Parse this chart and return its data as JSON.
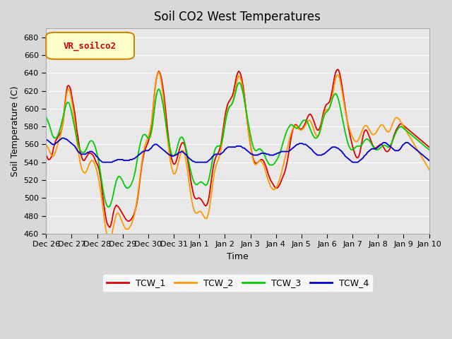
{
  "title": "Soil CO2 West Temperatures",
  "xlabel": "Time",
  "ylabel": "Soil Temperature (C)",
  "ylim": [
    460,
    690
  ],
  "yticks": [
    460,
    480,
    500,
    520,
    540,
    560,
    580,
    600,
    620,
    640,
    660,
    680
  ],
  "bg_color": "#e8e8e8",
  "plot_bg": "#f0f0f0",
  "annotation_label": "VR_soilco2",
  "annotation_bg": "#ffffcc",
  "annotation_edge": "#cc8800",
  "annotation_text_color": "#cc0000",
  "series_colors": [
    "#dd0000",
    "#ff9900",
    "#00cc00",
    "#0000cc"
  ],
  "series_names": [
    "TCW_1",
    "TCW_2",
    "TCW_3",
    "TCW_4"
  ],
  "x_tick_labels": [
    "Dec 26",
    "Dec 27",
    "Dec 28",
    "Dec 29",
    "Dec 30",
    "Dec 31",
    "Jan 1",
    "Jan 2",
    "Jan 3",
    "Jan 4",
    "Jan 5",
    "Jan 6",
    "Jan 7",
    "Jan 8",
    "Jan 9",
    "Jan 10"
  ],
  "n_points": 361,
  "tcw1": [
    548,
    546,
    543,
    543,
    544,
    546,
    550,
    556,
    560,
    564,
    566,
    568,
    570,
    572,
    574,
    578,
    585,
    595,
    608,
    618,
    625,
    626,
    625,
    622,
    615,
    608,
    602,
    595,
    585,
    575,
    568,
    560,
    552,
    548,
    544,
    542,
    542,
    544,
    546,
    548,
    550,
    550,
    550,
    549,
    548,
    546,
    543,
    540,
    538,
    535,
    531,
    524,
    516,
    504,
    495,
    487,
    479,
    473,
    470,
    468,
    467,
    470,
    475,
    482,
    487,
    490,
    492,
    491,
    490,
    488,
    486,
    484,
    482,
    480,
    478,
    476,
    475,
    474,
    474,
    475,
    476,
    478,
    480,
    483,
    487,
    492,
    499,
    508,
    518,
    528,
    537,
    544,
    550,
    554,
    557,
    560,
    563,
    567,
    572,
    580,
    592,
    605,
    618,
    628,
    636,
    640,
    642,
    640,
    636,
    630,
    622,
    613,
    602,
    590,
    578,
    568,
    558,
    550,
    544,
    540,
    538,
    538,
    540,
    544,
    548,
    553,
    557,
    560,
    562,
    562,
    560,
    556,
    550,
    543,
    536,
    528,
    520,
    513,
    507,
    502,
    500,
    499,
    499,
    500,
    500,
    499,
    498,
    496,
    494,
    492,
    491,
    492,
    495,
    500,
    508,
    517,
    526,
    534,
    540,
    544,
    547,
    549,
    551,
    554,
    558,
    565,
    573,
    582,
    590,
    597,
    602,
    606,
    608,
    610,
    612,
    614,
    618,
    624,
    630,
    636,
    640,
    642,
    641,
    638,
    633,
    626,
    618,
    608,
    598,
    587,
    577,
    568,
    560,
    553,
    547,
    543,
    540,
    539,
    539,
    540,
    541,
    542,
    543,
    543,
    542,
    540,
    537,
    534,
    530,
    526,
    523,
    520,
    518,
    516,
    514,
    512,
    511,
    511,
    512,
    514,
    516,
    519,
    522,
    525,
    528,
    532,
    537,
    543,
    550,
    558,
    566,
    572,
    577,
    580,
    582,
    582,
    581,
    579,
    578,
    577,
    577,
    578,
    580,
    582,
    585,
    588,
    591,
    593,
    594,
    593,
    591,
    588,
    585,
    581,
    578,
    576,
    576,
    578,
    581,
    586,
    592,
    597,
    601,
    604,
    605,
    606,
    607,
    610,
    615,
    621,
    628,
    635,
    640,
    643,
    644,
    643,
    639,
    633,
    626,
    618,
    610,
    602,
    594,
    587,
    580,
    574,
    568,
    563,
    558,
    554,
    550,
    547,
    545,
    545,
    547,
    551,
    557,
    564,
    570,
    574,
    576,
    576,
    574,
    571,
    568,
    565,
    562,
    559,
    557,
    556,
    556,
    557,
    558,
    559,
    560,
    560,
    559,
    557,
    555,
    553,
    552,
    552,
    553,
    555,
    558,
    562,
    566,
    570,
    573,
    576,
    578,
    580,
    582,
    583,
    583,
    582,
    581,
    580,
    579,
    578,
    577,
    576,
    575,
    574,
    573,
    572,
    571,
    570,
    569,
    568,
    567,
    566,
    565,
    564,
    563,
    562,
    561,
    560,
    559,
    558,
    557
  ],
  "tcw2": [
    560,
    558,
    556,
    553,
    550,
    548,
    546,
    547,
    549,
    552,
    556,
    560,
    564,
    568,
    572,
    578,
    585,
    594,
    604,
    614,
    620,
    622,
    620,
    616,
    609,
    602,
    594,
    585,
    574,
    563,
    554,
    547,
    540,
    535,
    531,
    529,
    528,
    528,
    530,
    533,
    536,
    539,
    541,
    542,
    542,
    540,
    537,
    533,
    529,
    523,
    517,
    510,
    502,
    493,
    483,
    474,
    466,
    460,
    456,
    454,
    454,
    456,
    460,
    466,
    472,
    477,
    481,
    483,
    483,
    481,
    478,
    475,
    472,
    469,
    467,
    465,
    465,
    465,
    466,
    468,
    470,
    473,
    477,
    481,
    487,
    494,
    502,
    511,
    521,
    531,
    540,
    548,
    554,
    559,
    562,
    565,
    568,
    572,
    577,
    584,
    594,
    606,
    618,
    628,
    636,
    640,
    641,
    638,
    632,
    624,
    615,
    604,
    592,
    579,
    568,
    558,
    548,
    540,
    534,
    530,
    527,
    527,
    529,
    533,
    538,
    543,
    548,
    551,
    553,
    553,
    550,
    545,
    538,
    530,
    521,
    512,
    504,
    497,
    491,
    487,
    484,
    483,
    483,
    484,
    485,
    485,
    484,
    482,
    480,
    478,
    477,
    477,
    480,
    485,
    492,
    501,
    510,
    519,
    527,
    533,
    537,
    540,
    543,
    547,
    552,
    559,
    567,
    576,
    584,
    591,
    596,
    600,
    602,
    603,
    604,
    606,
    610,
    616,
    623,
    629,
    634,
    637,
    636,
    633,
    628,
    621,
    614,
    605,
    596,
    586,
    576,
    567,
    559,
    552,
    546,
    541,
    538,
    537,
    538,
    540,
    541,
    542,
    541,
    540,
    538,
    535,
    531,
    527,
    523,
    519,
    516,
    513,
    511,
    510,
    509,
    510,
    511,
    513,
    516,
    519,
    523,
    527,
    532,
    537,
    542,
    547,
    552,
    557,
    562,
    567,
    571,
    575,
    578,
    580,
    581,
    581,
    580,
    578,
    577,
    576,
    576,
    577,
    578,
    580,
    582,
    584,
    586,
    587,
    587,
    585,
    582,
    579,
    575,
    572,
    570,
    569,
    570,
    573,
    578,
    583,
    589,
    593,
    597,
    599,
    599,
    599,
    600,
    602,
    607,
    613,
    620,
    627,
    633,
    637,
    638,
    637,
    633,
    627,
    620,
    613,
    606,
    599,
    593,
    587,
    582,
    578,
    574,
    571,
    568,
    566,
    564,
    563,
    563,
    564,
    566,
    569,
    572,
    575,
    578,
    580,
    581,
    581,
    580,
    578,
    576,
    574,
    572,
    571,
    571,
    572,
    573,
    575,
    577,
    579,
    581,
    582,
    582,
    581,
    579,
    577,
    575,
    574,
    574,
    575,
    578,
    581,
    584,
    587,
    589,
    590,
    590,
    589,
    588,
    586,
    584,
    582,
    580,
    578,
    576,
    574,
    572,
    570,
    568,
    566,
    564,
    562,
    560,
    558,
    556,
    554,
    552,
    550,
    548,
    546,
    544,
    542,
    540,
    538,
    536,
    534,
    532
  ],
  "tcw3": [
    591,
    588,
    585,
    582,
    578,
    574,
    570,
    568,
    567,
    567,
    568,
    570,
    573,
    577,
    581,
    586,
    591,
    596,
    601,
    605,
    607,
    607,
    605,
    601,
    596,
    590,
    584,
    578,
    572,
    566,
    561,
    557,
    554,
    552,
    551,
    551,
    551,
    553,
    555,
    558,
    561,
    563,
    564,
    564,
    563,
    561,
    558,
    554,
    549,
    543,
    536,
    529,
    521,
    513,
    506,
    500,
    495,
    492,
    490,
    490,
    491,
    494,
    498,
    503,
    509,
    514,
    519,
    522,
    524,
    524,
    523,
    521,
    519,
    516,
    514,
    512,
    511,
    511,
    512,
    513,
    515,
    518,
    521,
    526,
    531,
    538,
    545,
    552,
    558,
    563,
    567,
    570,
    571,
    571,
    570,
    568,
    567,
    567,
    569,
    574,
    581,
    591,
    601,
    610,
    617,
    621,
    622,
    620,
    616,
    610,
    604,
    596,
    588,
    580,
    572,
    565,
    558,
    553,
    549,
    547,
    547,
    548,
    551,
    555,
    560,
    564,
    567,
    568,
    568,
    566,
    563,
    558,
    553,
    547,
    541,
    535,
    530,
    525,
    521,
    518,
    516,
    515,
    515,
    516,
    517,
    518,
    518,
    517,
    516,
    515,
    514,
    515,
    517,
    521,
    527,
    533,
    540,
    546,
    551,
    555,
    557,
    558,
    558,
    558,
    559,
    562,
    567,
    574,
    581,
    588,
    594,
    598,
    601,
    603,
    604,
    606,
    609,
    613,
    618,
    623,
    627,
    629,
    629,
    627,
    623,
    618,
    612,
    605,
    598,
    591,
    584,
    577,
    571,
    565,
    560,
    556,
    554,
    553,
    553,
    554,
    555,
    555,
    554,
    553,
    551,
    549,
    546,
    543,
    541,
    539,
    537,
    537,
    537,
    537,
    538,
    539,
    541,
    543,
    545,
    548,
    551,
    555,
    559,
    563,
    567,
    571,
    574,
    577,
    579,
    581,
    582,
    582,
    581,
    580,
    579,
    578,
    578,
    579,
    580,
    582,
    584,
    586,
    587,
    587,
    587,
    586,
    584,
    581,
    578,
    575,
    572,
    570,
    568,
    567,
    567,
    568,
    570,
    573,
    577,
    582,
    587,
    591,
    594,
    596,
    597,
    598,
    600,
    603,
    607,
    611,
    614,
    616,
    617,
    616,
    613,
    609,
    604,
    598,
    592,
    586,
    580,
    574,
    569,
    564,
    560,
    557,
    555,
    554,
    554,
    555,
    556,
    557,
    558,
    558,
    558,
    558,
    559,
    560,
    562,
    564,
    565,
    566,
    566,
    565,
    564,
    562,
    560,
    558,
    556,
    555,
    554,
    554,
    554,
    555,
    556,
    557,
    558,
    559,
    559,
    559,
    558,
    557,
    557,
    558,
    560,
    562,
    565,
    568,
    571,
    574,
    576,
    578,
    579,
    580,
    580,
    579,
    578,
    577,
    576,
    575,
    574,
    573,
    572,
    571,
    570,
    569,
    568,
    567,
    566,
    565,
    564,
    563,
    562,
    561,
    560,
    559,
    558,
    557,
    556,
    555,
    554
  ],
  "tcw4": [
    565,
    565,
    564,
    563,
    562,
    561,
    560,
    560,
    560,
    561,
    562,
    563,
    564,
    565,
    566,
    567,
    567,
    567,
    566,
    566,
    565,
    564,
    563,
    562,
    561,
    560,
    559,
    558,
    556,
    554,
    552,
    551,
    550,
    549,
    549,
    549,
    549,
    549,
    550,
    551,
    551,
    552,
    552,
    552,
    551,
    550,
    549,
    547,
    546,
    545,
    543,
    542,
    541,
    540,
    540,
    540,
    540,
    540,
    540,
    540,
    540,
    540,
    540,
    541,
    541,
    542,
    542,
    543,
    543,
    543,
    543,
    543,
    543,
    542,
    542,
    542,
    542,
    542,
    542,
    543,
    543,
    543,
    544,
    544,
    545,
    546,
    547,
    548,
    549,
    550,
    551,
    552,
    552,
    553,
    553,
    553,
    553,
    554,
    555,
    556,
    558,
    559,
    560,
    560,
    560,
    559,
    558,
    557,
    556,
    555,
    554,
    553,
    552,
    551,
    550,
    549,
    548,
    548,
    547,
    547,
    547,
    548,
    548,
    549,
    550,
    551,
    551,
    552,
    552,
    551,
    550,
    549,
    548,
    546,
    545,
    544,
    543,
    542,
    541,
    541,
    540,
    540,
    540,
    540,
    540,
    540,
    540,
    540,
    540,
    540,
    540,
    540,
    541,
    542,
    543,
    544,
    546,
    547,
    548,
    549,
    549,
    549,
    549,
    549,
    549,
    550,
    551,
    552,
    554,
    555,
    556,
    557,
    557,
    557,
    557,
    557,
    557,
    557,
    557,
    558,
    558,
    558,
    558,
    558,
    557,
    556,
    556,
    555,
    554,
    553,
    552,
    551,
    550,
    549,
    549,
    548,
    548,
    548,
    548,
    548,
    549,
    549,
    550,
    550,
    550,
    550,
    550,
    549,
    549,
    549,
    548,
    548,
    548,
    548,
    548,
    549,
    549,
    550,
    550,
    551,
    551,
    552,
    552,
    552,
    552,
    552,
    552,
    552,
    552,
    553,
    554,
    555,
    556,
    557,
    558,
    559,
    560,
    560,
    561,
    561,
    561,
    561,
    560,
    560,
    560,
    559,
    558,
    557,
    556,
    555,
    554,
    552,
    551,
    550,
    549,
    548,
    548,
    548,
    548,
    548,
    549,
    549,
    550,
    551,
    552,
    553,
    554,
    555,
    556,
    557,
    557,
    557,
    557,
    556,
    556,
    555,
    554,
    553,
    552,
    550,
    549,
    547,
    546,
    545,
    544,
    543,
    542,
    541,
    540,
    540,
    540,
    540,
    540,
    540,
    541,
    542,
    543,
    544,
    545,
    547,
    548,
    549,
    551,
    552,
    553,
    554,
    555,
    555,
    555,
    555,
    555,
    556,
    557,
    558,
    559,
    560,
    561,
    562,
    562,
    562,
    561,
    560,
    559,
    558,
    557,
    556,
    555,
    554,
    553,
    553,
    553,
    553,
    554,
    555,
    557,
    559,
    560,
    561,
    562,
    562,
    562,
    561,
    560,
    559,
    558,
    557,
    556,
    555,
    554,
    553,
    552,
    551,
    550,
    549,
    548,
    547,
    546,
    545,
    544,
    543,
    542
  ]
}
